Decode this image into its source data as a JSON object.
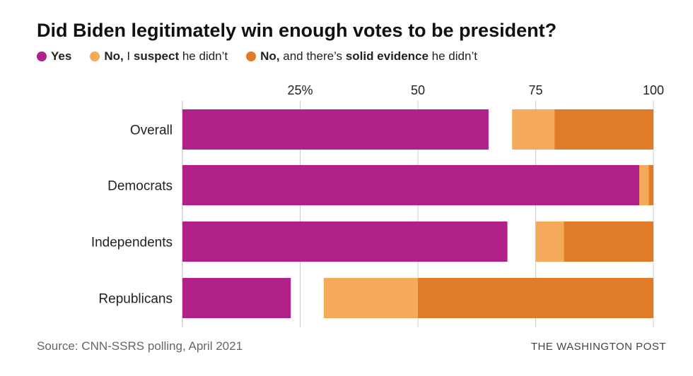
{
  "title": "Did Biden legitimately win enough votes to be president?",
  "legend": [
    {
      "segments": [
        {
          "text": "Yes",
          "bold": true
        }
      ],
      "color": "#b02189"
    },
    {
      "segments": [
        {
          "text": "No,",
          "bold": true
        },
        {
          "text": " I ",
          "bold": false
        },
        {
          "text": "suspect",
          "bold": true
        },
        {
          "text": " he didn’t",
          "bold": false
        }
      ],
      "color": "#f5a95a"
    },
    {
      "segments": [
        {
          "text": "No,",
          "bold": true
        },
        {
          "text": " and there’s ",
          "bold": false
        },
        {
          "text": "solid evidence",
          "bold": true
        },
        {
          "text": " he didn’t",
          "bold": false
        }
      ],
      "color": "#e07b27"
    }
  ],
  "chart_data": {
    "type": "bar",
    "orientation": "horizontal-stacked",
    "categories": [
      "Overall",
      "Democrats",
      "Independents",
      "Republicans"
    ],
    "series": [
      {
        "name": "Yes",
        "values": [
          65,
          97,
          69,
          23
        ],
        "color": "#b02189"
      },
      {
        "name": "No, I suspect he didn’t",
        "values": [
          9,
          2,
          6,
          20
        ],
        "color": "#f5a95a"
      },
      {
        "name": "No, and there’s solid evidence he didn’t",
        "values": [
          21,
          1,
          19,
          50
        ],
        "color": "#e07b27"
      }
    ],
    "note": "Yes bars start at 0; No bars are right-aligned to 100",
    "xlim": [
      0,
      100
    ],
    "ticks": [
      {
        "v": 25,
        "label": "25%"
      },
      {
        "v": 50,
        "label": "50"
      },
      {
        "v": 75,
        "label": "75"
      },
      {
        "v": 100,
        "label": "100"
      }
    ]
  },
  "source": "Source: CNN-SSRS polling, April 2021",
  "credit": "THE WASHINGTON POST"
}
